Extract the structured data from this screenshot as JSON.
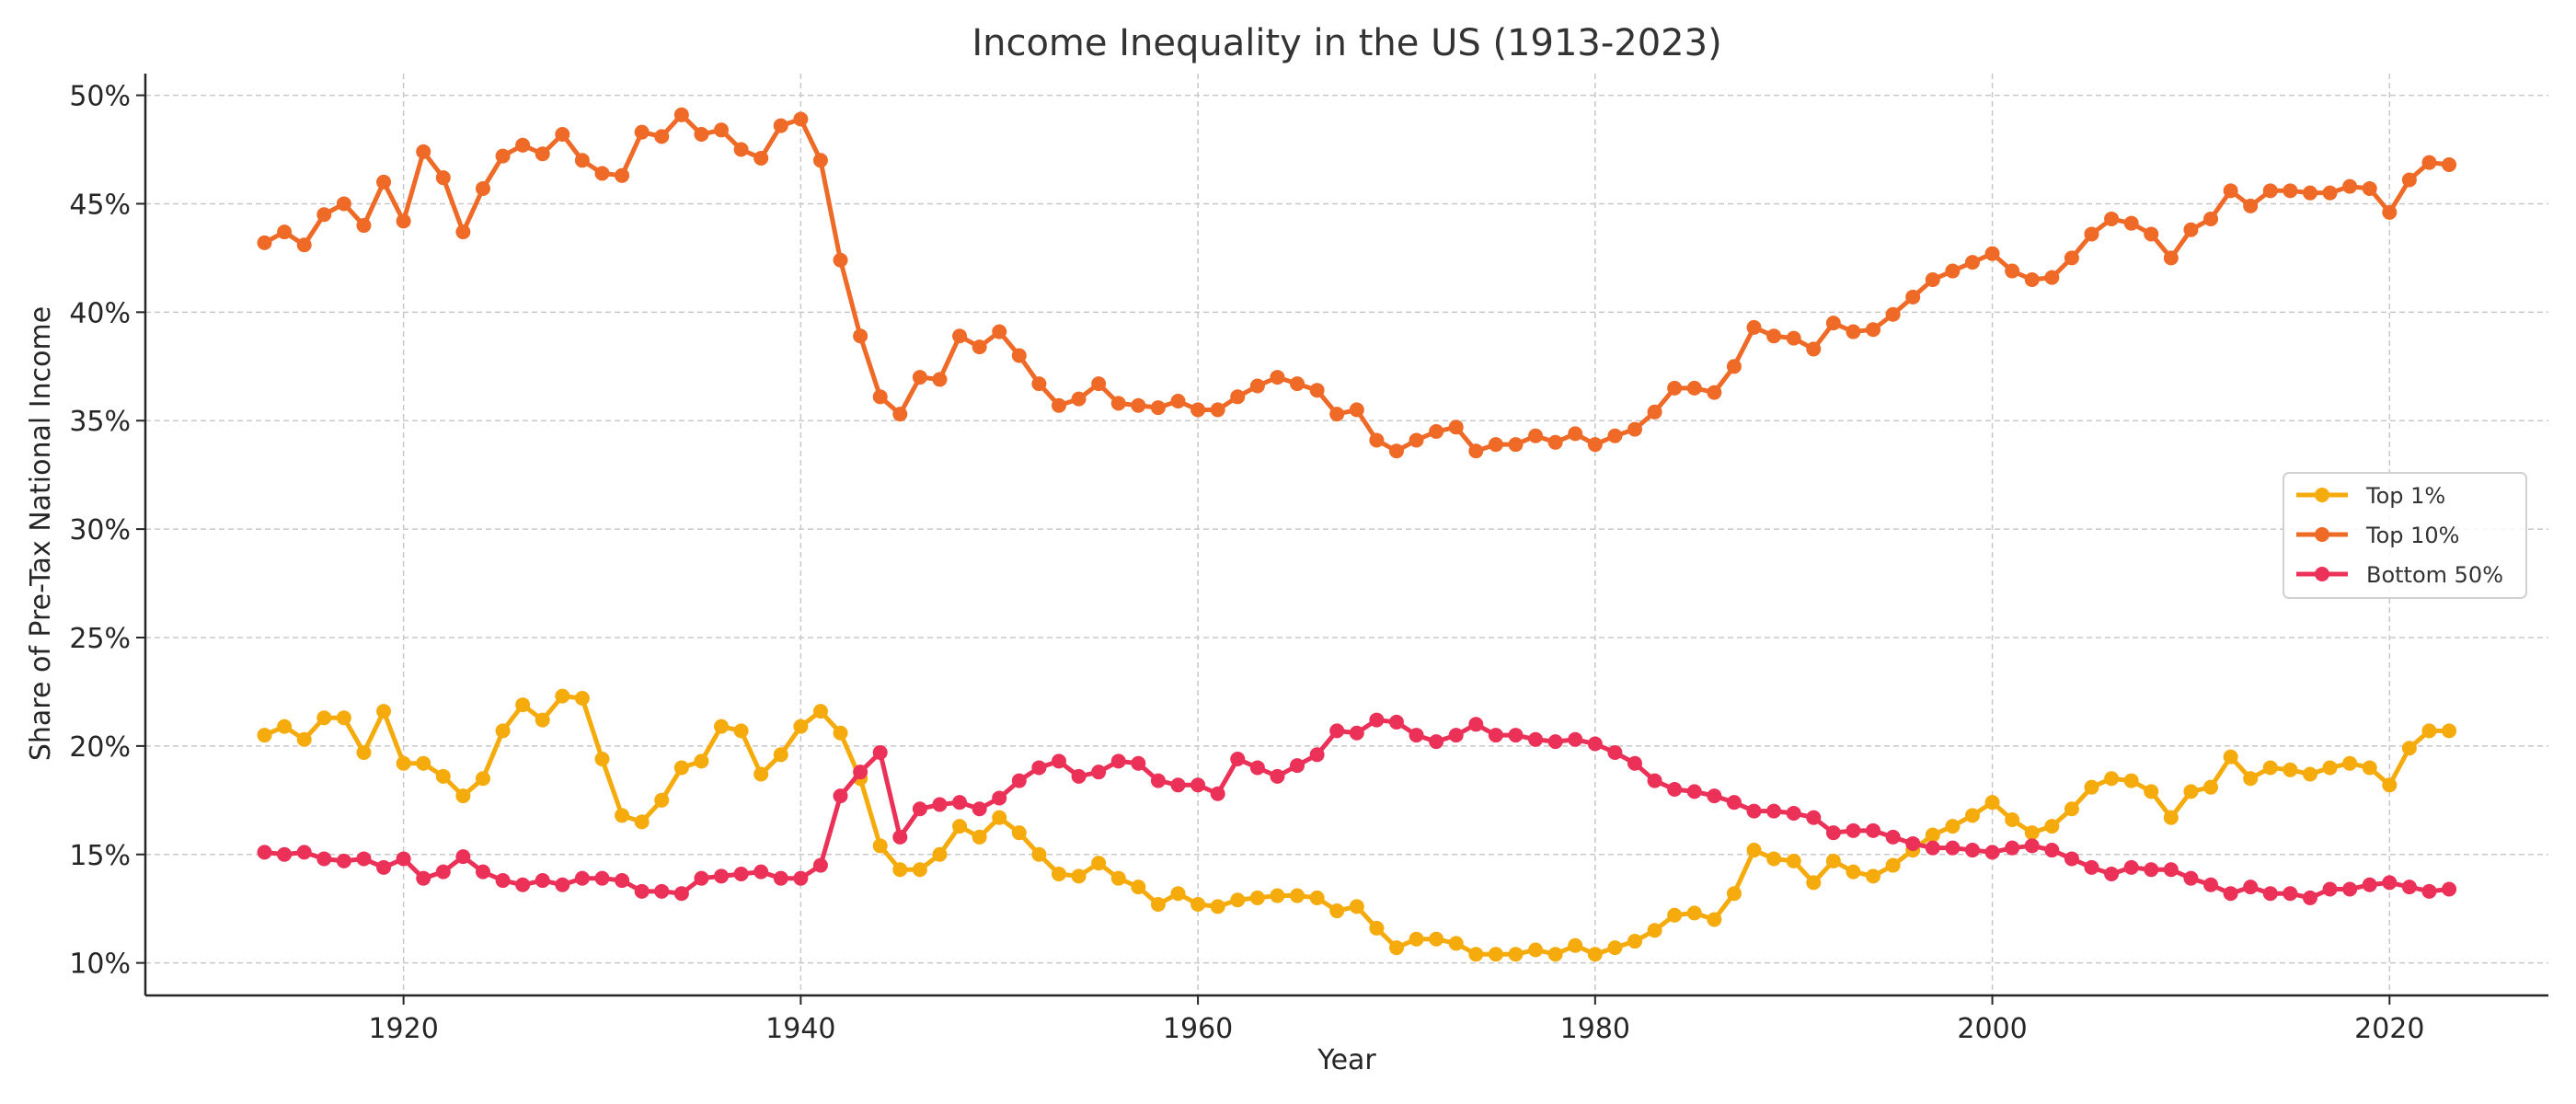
{
  "chart_data": {
    "type": "line",
    "title": "Income Inequality in the US (1913-2023)",
    "xlabel": "Year",
    "ylabel": "Share of Pre-Tax National Income",
    "xlim": [
      1907,
      2028
    ],
    "ylim": [
      8.5,
      51
    ],
    "xticks": [
      1920,
      1940,
      1960,
      1980,
      2000,
      2020
    ],
    "xtick_labels": [
      "1920",
      "1940",
      "1960",
      "1980",
      "2000",
      "2020"
    ],
    "yticks": [
      10,
      15,
      20,
      25,
      30,
      35,
      40,
      45,
      50
    ],
    "ytick_labels": [
      "10%",
      "15%",
      "20%",
      "25%",
      "30%",
      "35%",
      "40%",
      "45%",
      "50%"
    ],
    "grid": true,
    "legend_position": "center-right",
    "x": [
      1913,
      1914,
      1915,
      1916,
      1917,
      1918,
      1919,
      1920,
      1921,
      1922,
      1923,
      1924,
      1925,
      1926,
      1927,
      1928,
      1929,
      1930,
      1931,
      1932,
      1933,
      1934,
      1935,
      1936,
      1937,
      1938,
      1939,
      1940,
      1941,
      1942,
      1943,
      1944,
      1945,
      1946,
      1947,
      1948,
      1949,
      1950,
      1951,
      1952,
      1953,
      1954,
      1955,
      1956,
      1957,
      1958,
      1959,
      1960,
      1961,
      1962,
      1963,
      1964,
      1965,
      1966,
      1967,
      1968,
      1969,
      1970,
      1971,
      1972,
      1973,
      1974,
      1975,
      1976,
      1977,
      1978,
      1979,
      1980,
      1981,
      1982,
      1983,
      1984,
      1985,
      1986,
      1987,
      1988,
      1989,
      1990,
      1991,
      1992,
      1993,
      1994,
      1995,
      1996,
      1997,
      1998,
      1999,
      2000,
      2001,
      2002,
      2003,
      2004,
      2005,
      2006,
      2007,
      2008,
      2009,
      2010,
      2011,
      2012,
      2013,
      2014,
      2015,
      2016,
      2017,
      2018,
      2019,
      2020,
      2021,
      2022,
      2023
    ],
    "series": [
      {
        "name": "Top 1%",
        "color": "#f5ab0b",
        "values": [
          20.5,
          20.9,
          20.3,
          21.3,
          21.3,
          19.7,
          21.6,
          19.2,
          19.2,
          18.6,
          17.7,
          18.5,
          20.7,
          21.9,
          21.2,
          22.3,
          22.2,
          19.4,
          16.8,
          16.5,
          17.5,
          19.0,
          19.3,
          20.9,
          20.7,
          18.7,
          19.6,
          20.9,
          21.6,
          20.6,
          18.5,
          15.4,
          14.3,
          14.3,
          15.0,
          16.3,
          15.8,
          16.7,
          16.0,
          15.0,
          14.1,
          14.0,
          14.6,
          13.9,
          13.5,
          12.7,
          13.2,
          12.7,
          12.6,
          12.9,
          13.0,
          13.1,
          13.1,
          13.0,
          12.4,
          12.6,
          11.6,
          10.7,
          11.1,
          11.1,
          10.9,
          10.4,
          10.4,
          10.4,
          10.6,
          10.4,
          10.8,
          10.4,
          10.7,
          11.0,
          11.5,
          12.2,
          12.3,
          12.0,
          13.2,
          15.2,
          14.8,
          14.7,
          13.7,
          14.7,
          14.2,
          14.0,
          14.5,
          15.2,
          15.9,
          16.3,
          16.8,
          17.4,
          16.6,
          16.0,
          16.3,
          17.1,
          18.1,
          18.5,
          18.4,
          17.9,
          16.7,
          17.9,
          18.1,
          19.5,
          18.5,
          19.0,
          18.9,
          18.7,
          19.0,
          19.2,
          19.0,
          18.2,
          19.9,
          20.7,
          20.7
        ]
      },
      {
        "name": "Top 10%",
        "color": "#ee6a26",
        "values": [
          43.2,
          43.7,
          43.1,
          44.5,
          45.0,
          44.0,
          46.0,
          44.2,
          47.4,
          46.2,
          43.7,
          45.7,
          47.2,
          47.7,
          47.3,
          48.2,
          47.0,
          46.4,
          46.3,
          48.3,
          48.1,
          49.1,
          48.2,
          48.4,
          47.5,
          47.1,
          48.6,
          48.9,
          47.0,
          42.4,
          38.9,
          36.1,
          35.3,
          37.0,
          36.9,
          38.9,
          38.4,
          39.1,
          38.0,
          36.7,
          35.7,
          36.0,
          36.7,
          35.8,
          35.7,
          35.6,
          35.9,
          35.5,
          35.5,
          36.1,
          36.6,
          37.0,
          36.7,
          36.4,
          35.3,
          35.5,
          34.1,
          33.6,
          34.1,
          34.5,
          34.7,
          33.6,
          33.9,
          33.9,
          34.3,
          34.0,
          34.4,
          33.9,
          34.3,
          34.6,
          35.4,
          36.5,
          36.5,
          36.3,
          37.5,
          39.3,
          38.9,
          38.8,
          38.3,
          39.5,
          39.1,
          39.2,
          39.9,
          40.7,
          41.5,
          41.9,
          42.3,
          42.7,
          41.9,
          41.5,
          41.6,
          42.5,
          43.6,
          44.3,
          44.1,
          43.6,
          42.5,
          43.8,
          44.3,
          45.6,
          44.9,
          45.6,
          45.6,
          45.5,
          45.5,
          45.8,
          45.7,
          44.6,
          46.1,
          46.9,
          46.8
        ]
      },
      {
        "name": "Bottom 50%",
        "color": "#eb3157",
        "values": [
          15.1,
          15.0,
          15.1,
          14.8,
          14.7,
          14.8,
          14.4,
          14.8,
          13.9,
          14.2,
          14.9,
          14.2,
          13.8,
          13.6,
          13.8,
          13.6,
          13.9,
          13.9,
          13.8,
          13.3,
          13.3,
          13.2,
          13.9,
          14.0,
          14.1,
          14.2,
          13.9,
          13.9,
          14.5,
          17.7,
          18.8,
          19.7,
          15.8,
          17.1,
          17.3,
          17.4,
          17.1,
          17.6,
          18.4,
          19.0,
          19.3,
          18.6,
          18.8,
          19.3,
          19.2,
          18.4,
          18.2,
          18.2,
          17.8,
          19.4,
          19.0,
          18.6,
          19.1,
          19.6,
          20.7,
          20.6,
          21.2,
          21.1,
          20.5,
          20.2,
          20.5,
          21.0,
          20.5,
          20.5,
          20.3,
          20.2,
          20.3,
          20.1,
          19.7,
          19.2,
          18.4,
          18.0,
          17.9,
          17.7,
          17.4,
          17.0,
          17.0,
          16.9,
          16.7,
          16.0,
          16.1,
          16.1,
          15.8,
          15.5,
          15.3,
          15.3,
          15.2,
          15.1,
          15.3,
          15.4,
          15.2,
          14.8,
          14.4,
          14.1,
          14.4,
          14.3,
          14.3,
          13.9,
          13.6,
          13.2,
          13.5,
          13.2,
          13.2,
          13.0,
          13.4,
          13.4,
          13.6,
          13.7,
          13.5,
          13.3,
          13.4
        ]
      }
    ]
  }
}
